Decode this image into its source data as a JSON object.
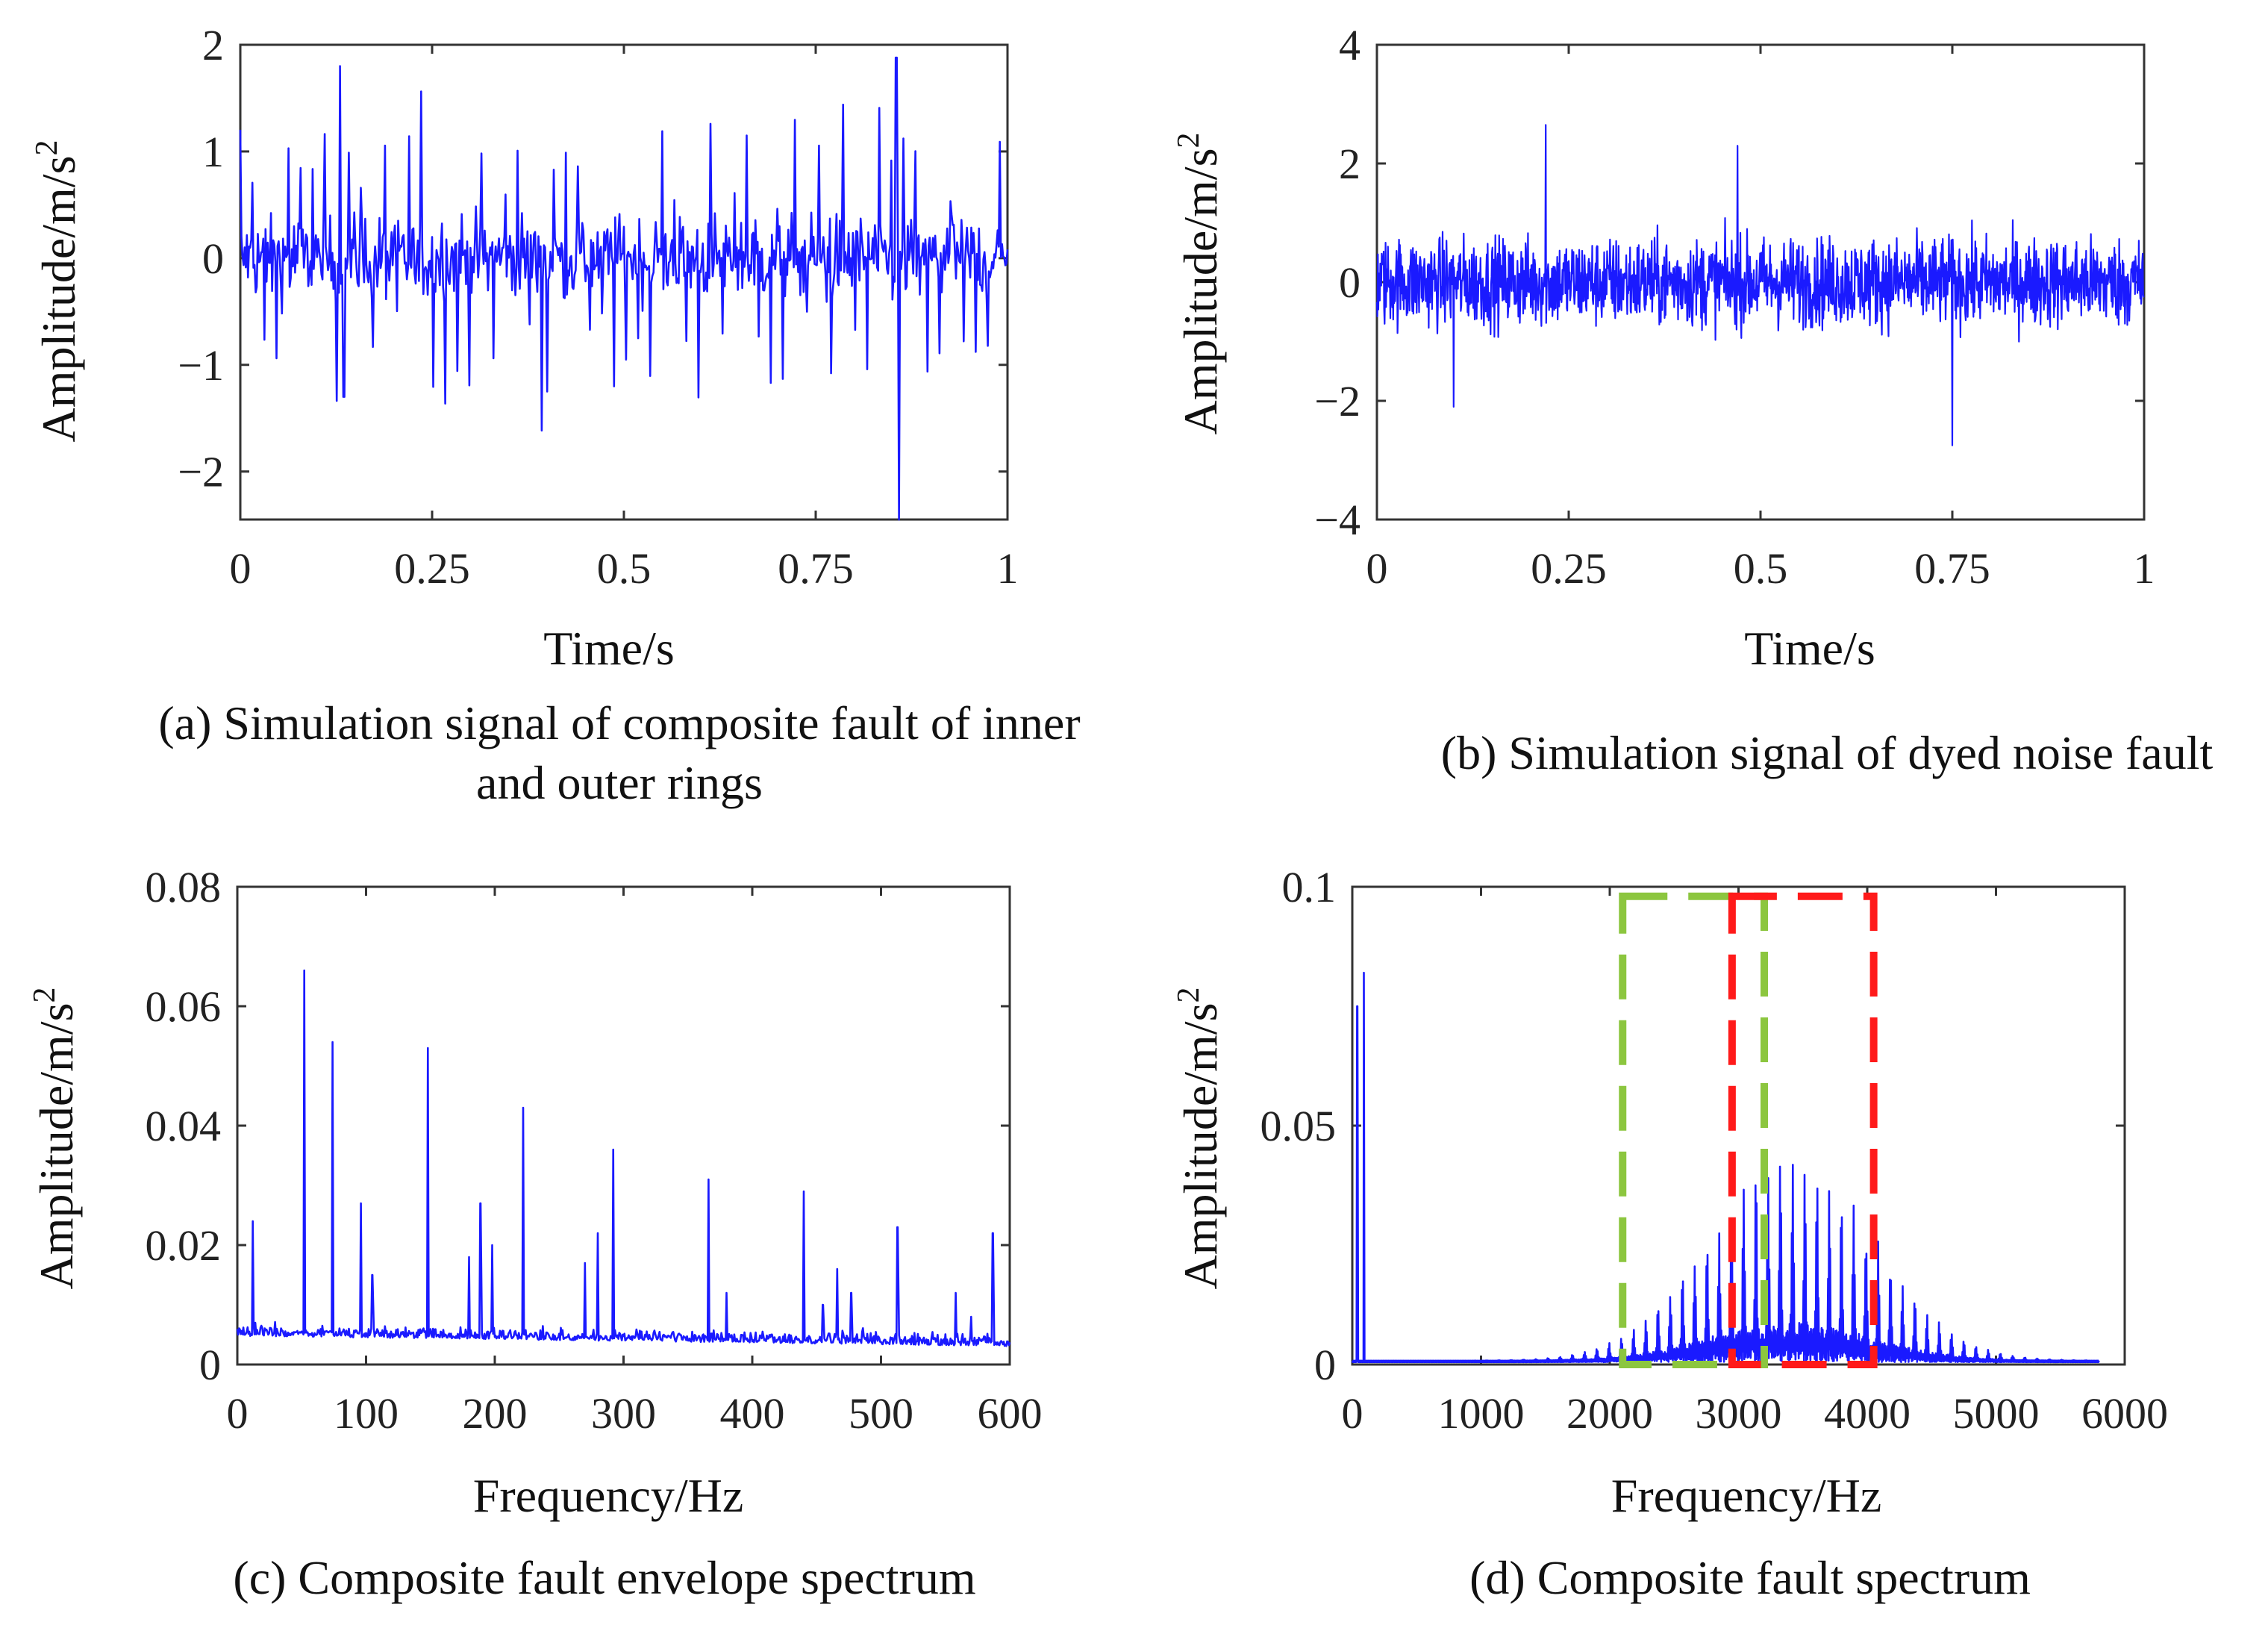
{
  "colors": {
    "signal": "#1a1aff",
    "green_box": "#8cc63f",
    "red_box": "#ff1a1a",
    "axis": "#333333"
  },
  "chart_data": [
    {
      "id": "a",
      "type": "line",
      "title": "",
      "xlabel": "Time/s",
      "ylabel": "Amplitude/m/s",
      "ylabel_sup": "2",
      "xlim": [
        0,
        1
      ],
      "ylim": [
        -2.45,
        2
      ],
      "xticks": [
        0,
        0.25,
        0.5,
        0.75,
        1
      ],
      "xtick_labels": [
        "0",
        "0.25",
        "0.5",
        "0.75",
        "1"
      ],
      "yticks": [
        -2,
        -1,
        0,
        1,
        2
      ],
      "ytick_labels": [
        "−2",
        "−1",
        "0",
        "1",
        "2"
      ],
      "caption_lines": [
        "(a) Simulation signal of composite fault of inner",
        "and outer rings"
      ],
      "series": [
        {
          "name": "signal",
          "kind": "noise",
          "samples": 700,
          "base_amp": 0.4,
          "spikes": [
            [
              0.13,
              1.8
            ],
            [
              0.135,
              -1.3
            ],
            [
              0.855,
              1.88
            ],
            [
              0.858,
              -2.45
            ],
            [
              0.4,
              -1.25
            ],
            [
              0.66,
              1.15
            ]
          ]
        }
      ]
    },
    {
      "id": "b",
      "type": "line",
      "title": "",
      "xlabel": "Time/s",
      "ylabel": "Amplitude/m/s",
      "ylabel_sup": "2",
      "xlim": [
        0,
        1
      ],
      "ylim": [
        -4,
        4
      ],
      "xticks": [
        0,
        0.25,
        0.5,
        0.75,
        1
      ],
      "xtick_labels": [
        "0",
        "0.25",
        "0.5",
        "0.75",
        "1"
      ],
      "yticks": [
        -4,
        -2,
        0,
        2,
        4
      ],
      "ytick_labels": [
        "−4",
        "−2",
        "0",
        "2",
        "4"
      ],
      "caption_lines": [
        "(b) Simulation signal of dyed noise fault"
      ],
      "series": [
        {
          "name": "signal",
          "kind": "dense-noise",
          "samples": 1600,
          "base_amp": 0.75,
          "spikes": [
            [
              0.22,
              2.65
            ],
            [
              0.75,
              -2.75
            ],
            [
              0.1,
              -2.1
            ],
            [
              0.47,
              2.3
            ]
          ]
        }
      ]
    },
    {
      "id": "c",
      "type": "line",
      "title": "",
      "xlabel": "Frequency/Hz",
      "ylabel": "Amplitude/m/s",
      "ylabel_sup": "2",
      "xlim": [
        0,
        600
      ],
      "ylim": [
        0,
        0.08
      ],
      "xticks": [
        0,
        100,
        200,
        300,
        400,
        500,
        600
      ],
      "xtick_labels": [
        "0",
        "100",
        "200",
        "300",
        "400",
        "500",
        "600"
      ],
      "yticks": [
        0,
        0.02,
        0.04,
        0.06,
        0.08
      ],
      "ytick_labels": [
        "0",
        "0.02",
        "0.04",
        "0.06",
        "0.08"
      ],
      "caption_lines": [
        "(c) Composite fault envelope spectrum"
      ],
      "series": [
        {
          "name": "envelope",
          "kind": "spectrum",
          "samples": 900,
          "base": 0.004,
          "peaks": [
            [
              12,
              0.024
            ],
            [
              52,
              0.066
            ],
            [
              74,
              0.054
            ],
            [
              96,
              0.027
            ],
            [
              105,
              0.015
            ],
            [
              148,
              0.053
            ],
            [
              180,
              0.018
            ],
            [
              189,
              0.027
            ],
            [
              198,
              0.02
            ],
            [
              222,
              0.043
            ],
            [
              270,
              0.017
            ],
            [
              280,
              0.022
            ],
            [
              292,
              0.036
            ],
            [
              366,
              0.031
            ],
            [
              380,
              0.012
            ],
            [
              440,
              0.029
            ],
            [
              455,
              0.01
            ],
            [
              466,
              0.016
            ],
            [
              477,
              0.012
            ],
            [
              513,
              0.023
            ],
            [
              558,
              0.012
            ],
            [
              570,
              0.008
            ],
            [
              587,
              0.022
            ]
          ]
        }
      ]
    },
    {
      "id": "d",
      "type": "line",
      "title": "",
      "xlabel": "Frequency/Hz",
      "ylabel": "Amplitude/m/s",
      "ylabel_sup": "2",
      "xlim": [
        0,
        6000
      ],
      "ylim": [
        0,
        0.1
      ],
      "xticks": [
        0,
        1000,
        2000,
        3000,
        4000,
        5000,
        6000
      ],
      "xtick_labels": [
        "0",
        "1000",
        "2000",
        "3000",
        "4000",
        "5000",
        "6000"
      ],
      "yticks": [
        0,
        0.05,
        0.1
      ],
      "ytick_labels": [
        "0",
        "0.05",
        "0.1"
      ],
      "caption_lines": [
        "(d) Composite fault spectrum"
      ],
      "series": [
        {
          "name": "spectrum",
          "kind": "band-spectrum",
          "samples": 1400,
          "low_peaks": [
            [
              40,
              0.075
            ],
            [
              90,
              0.082
            ]
          ],
          "band_center": 3400,
          "band_width": 900,
          "band_peak": 0.038,
          "spacing": 95,
          "x_end": 5800
        }
      ],
      "boxes": [
        {
          "name": "green-box",
          "color": "green_box",
          "x0": 2100,
          "x1": 3200,
          "y0": 0,
          "y1": 0.098
        },
        {
          "name": "red-box",
          "color": "red_box",
          "x0": 2950,
          "x1": 4050,
          "y0": 0,
          "y1": 0.098
        }
      ]
    }
  ]
}
